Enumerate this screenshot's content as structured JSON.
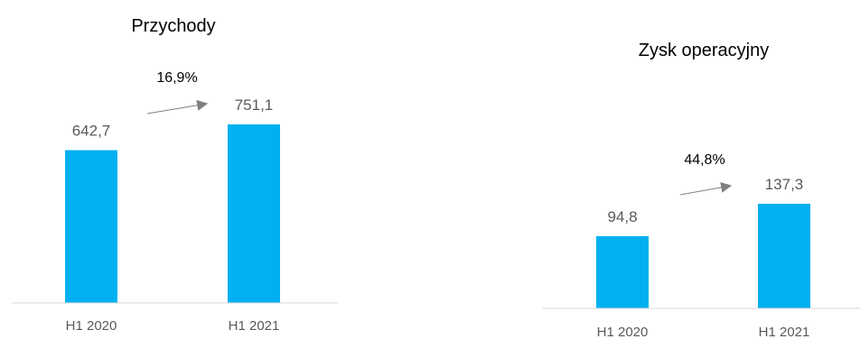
{
  "colors": {
    "bar": "#00B0F0",
    "axis": "#D9D9D9",
    "arrow": "#808080"
  },
  "chart_data": [
    {
      "type": "bar",
      "title": "Przychody",
      "categories": [
        "H1 2020",
        "H1 2021"
      ],
      "values": [
        642.7,
        751.1
      ],
      "value_labels": [
        "642,7",
        "751,1"
      ],
      "growth_label": "16,9%",
      "ylim": [
        0,
        800
      ]
    },
    {
      "type": "bar",
      "title": "Zysk operacyjny",
      "categories": [
        "H1 2020",
        "H1 2021"
      ],
      "values": [
        94.8,
        137.3
      ],
      "value_labels": [
        "94,8",
        "137,3"
      ],
      "growth_label": "44,8%",
      "ylim": [
        0,
        330
      ]
    }
  ]
}
